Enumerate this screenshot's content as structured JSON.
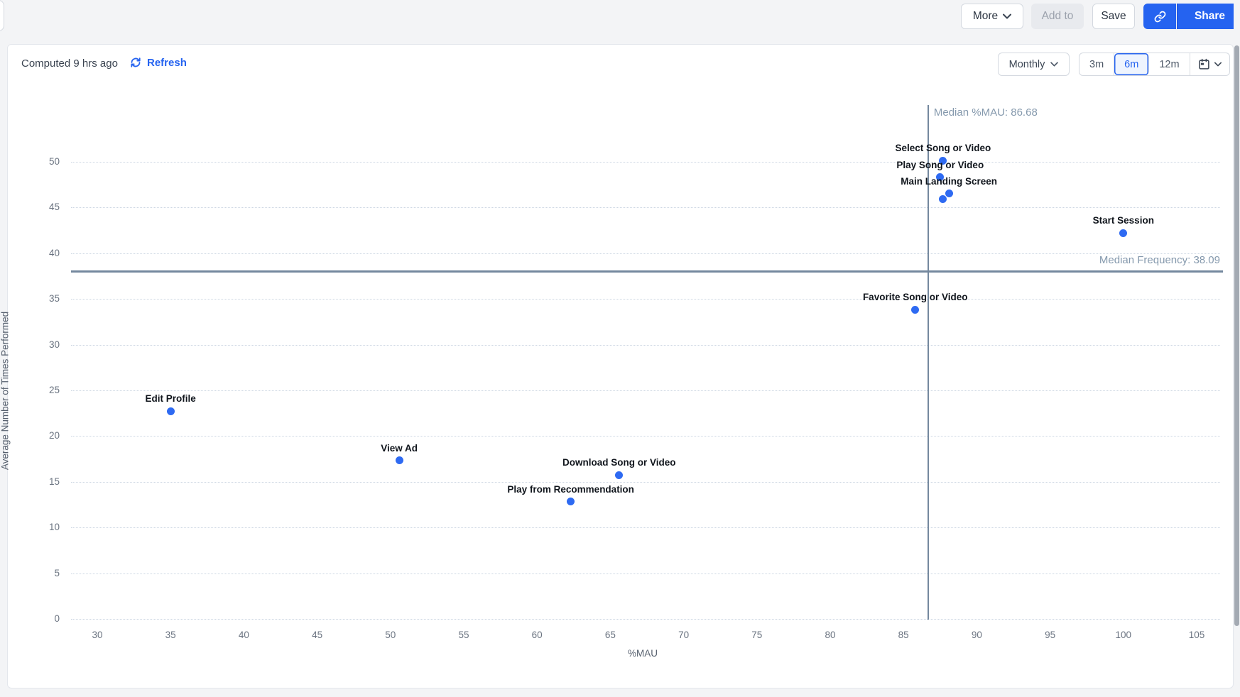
{
  "toolbar": {
    "more_label": "More",
    "add_to_label": "Add to",
    "save_label": "Save",
    "share_label": "Share"
  },
  "chart_header": {
    "computed_label": "Computed 9 hrs ago",
    "refresh_label": "Refresh",
    "interval_selected": "Monthly",
    "range_options": [
      "3m",
      "6m",
      "12m"
    ],
    "selected_range": "6m"
  },
  "theme": {
    "accent_blue": "#2563f0",
    "point_color": "#2e6af2",
    "median_line_color": "#74889e",
    "median_text_color": "#8599ad"
  },
  "chart_data": {
    "type": "scatter",
    "title": "",
    "xlabel": "%MAU",
    "ylabel": "Average Number of Times Performed",
    "x_ticks": [
      30,
      35,
      40,
      45,
      50,
      55,
      60,
      65,
      70,
      75,
      80,
      85,
      90,
      95,
      100,
      105
    ],
    "y_ticks": [
      0,
      5,
      10,
      15,
      20,
      25,
      30,
      35,
      40,
      45,
      50
    ],
    "xlim": [
      28,
      106.5
    ],
    "ylim": [
      0,
      52
    ],
    "grid": "horizontal-dotted",
    "legend": "none",
    "medians": {
      "x_value": 86.68,
      "x_label": "Median %MAU: 86.68",
      "y_value": 38.09,
      "y_label": "Median Frequency: 38.09"
    },
    "points": [
      {
        "label": "Select Song or Video",
        "x": 87.7,
        "y": 50.2
      },
      {
        "label": "Play Song or Video",
        "x": 87.5,
        "y": 48.4
      },
      {
        "label": "Main Landing Screen",
        "x": 88.1,
        "y": 46.6
      },
      {
        "label": "",
        "x": 87.7,
        "y": 46.0
      },
      {
        "label": "Start Session",
        "x": 100.0,
        "y": 42.3
      },
      {
        "label": "Favorite Song or Video",
        "x": 85.8,
        "y": 33.9
      },
      {
        "label": "Edit Profile",
        "x": 35.0,
        "y": 22.8
      },
      {
        "label": "View Ad",
        "x": 50.6,
        "y": 17.4
      },
      {
        "label": "Download Song or Video",
        "x": 65.6,
        "y": 15.8
      },
      {
        "label": "Play from Recommendation",
        "x": 62.3,
        "y": 12.9
      }
    ]
  }
}
